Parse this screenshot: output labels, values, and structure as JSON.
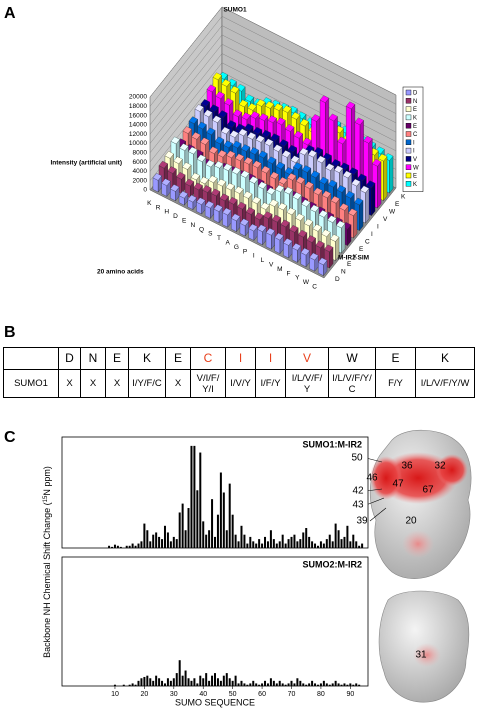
{
  "panels": [
    {
      "label": "A"
    },
    {
      "label": "B"
    },
    {
      "label": "C"
    }
  ],
  "chart_data": [
    {
      "type": "bar3d",
      "title": "SUMO1",
      "y_label": "Intensity (artificial unit)",
      "x_label": "20 amino acids",
      "z_label": "M-IR2 SIM",
      "categories": [
        "K",
        "R",
        "H",
        "D",
        "E",
        "N",
        "Q",
        "S",
        "T",
        "A",
        "G",
        "P",
        "I",
        "L",
        "V",
        "M",
        "F",
        "Y",
        "W",
        "C"
      ],
      "ylim": [
        0,
        20000
      ],
      "yticks": [
        0,
        2000,
        4000,
        6000,
        8000,
        10000,
        12000,
        14000,
        16000,
        18000,
        20000
      ],
      "grid": true,
      "series": [
        {
          "name": "D",
          "color": "#9999ff",
          "values": [
            2500,
            2300,
            2000,
            1500,
            1600,
            2000,
            2200,
            2400,
            2600,
            2300,
            2200,
            2000,
            2800,
            3000,
            2900,
            2700,
            2600,
            2500,
            2400,
            2300
          ]
        },
        {
          "name": "N",
          "color": "#993366",
          "values": [
            3500,
            3300,
            3000,
            2500,
            2600,
            3000,
            3200,
            3100,
            3300,
            3200,
            3000,
            2800,
            4000,
            4200,
            4100,
            3900,
            3800,
            3600,
            3400,
            3500
          ]
        },
        {
          "name": "E",
          "color": "#ffffcc",
          "values": [
            4000,
            3800,
            3500,
            2200,
            2300,
            3500,
            3700,
            3800,
            4000,
            3900,
            3700,
            3400,
            5000,
            5200,
            5100,
            4800,
            4600,
            4400,
            4200,
            4100
          ]
        },
        {
          "name": "K",
          "color": "#ccffff",
          "values": [
            5500,
            5000,
            5200,
            4500,
            4300,
            5000,
            5400,
            5600,
            5800,
            5500,
            5300,
            5000,
            6500,
            7000,
            6800,
            6200,
            6000,
            5800,
            5600,
            5400
          ]
        },
        {
          "name": "E",
          "color": "#660066",
          "values": [
            3500,
            3200,
            3000,
            2000,
            2100,
            3000,
            3200,
            3300,
            3500,
            3400,
            3100,
            2900,
            4200,
            4500,
            4300,
            4100,
            4000,
            3800,
            3600,
            3500
          ]
        },
        {
          "name": "C",
          "color": "#ff8080",
          "values": [
            4500,
            4200,
            4000,
            3000,
            3200,
            4000,
            4300,
            4500,
            4700,
            4500,
            4200,
            4000,
            5800,
            6000,
            5900,
            5500,
            5800,
            5600,
            5000,
            4800
          ]
        },
        {
          "name": "I",
          "color": "#0066cc",
          "values": [
            5000,
            4800,
            4500,
            3500,
            3600,
            4500,
            4700,
            5000,
            5200,
            4900,
            4700,
            4500,
            6500,
            6800,
            6600,
            6200,
            6500,
            6300,
            6000,
            5500
          ]
        },
        {
          "name": "I",
          "color": "#ccccff",
          "values": [
            6000,
            5800,
            5500,
            4000,
            4200,
            5500,
            5700,
            6000,
            6200,
            5900,
            5600,
            5400,
            8000,
            8500,
            8200,
            7500,
            8000,
            7800,
            7000,
            6500
          ]
        },
        {
          "name": "V",
          "color": "#000080",
          "values": [
            5500,
            5300,
            5000,
            3800,
            4000,
            5000,
            5200,
            5500,
            5700,
            5400,
            5100,
            4900,
            7000,
            7500,
            7200,
            6800,
            7000,
            6900,
            6500,
            6000
          ]
        },
        {
          "name": "W",
          "color": "#ff00ff",
          "values": [
            7000,
            6500,
            6000,
            4500,
            4800,
            6000,
            6500,
            7000,
            7500,
            7000,
            6500,
            6000,
            12000,
            17000,
            14000,
            10000,
            18500,
            16000,
            13000,
            9000
          ]
        },
        {
          "name": "E",
          "color": "#ffff00",
          "values": [
            8000,
            7500,
            7000,
            5000,
            5200,
            7000,
            7500,
            8000,
            8500,
            8000,
            7500,
            7000,
            9500,
            10000,
            9800,
            9000,
            9500,
            9200,
            8800,
            8500
          ]
        },
        {
          "name": "K",
          "color": "#00ffff",
          "values": [
            6500,
            6000,
            5800,
            4500,
            4600,
            5800,
            6200,
            6500,
            6800,
            6500,
            6200,
            6000,
            8000,
            8500,
            8200,
            7800,
            8000,
            7800,
            7500,
            7000
          ]
        }
      ]
    },
    {
      "type": "bar",
      "title": "SUMO1:M-IR2",
      "color": "#000000",
      "y_label": {
        "before": "Backbone NH Chemical Shift Change (",
        "sup": "15",
        "after": "N ppm)"
      },
      "xlim": [
        -8,
        96
      ],
      "ylim": [
        0,
        5
      ],
      "x": [
        8,
        9,
        10,
        11,
        12,
        13,
        14,
        15,
        16,
        17,
        18,
        19,
        20,
        21,
        22,
        23,
        24,
        25,
        26,
        27,
        28,
        29,
        30,
        31,
        32,
        33,
        34,
        35,
        36,
        37,
        38,
        39,
        40,
        41,
        42,
        43,
        44,
        45,
        46,
        47,
        48,
        49,
        50,
        51,
        52,
        53,
        54,
        55,
        56,
        57,
        58,
        59,
        60,
        61,
        62,
        63,
        64,
        65,
        66,
        67,
        68,
        69,
        70,
        71,
        72,
        73,
        74,
        75,
        76,
        77,
        78,
        79,
        80,
        81,
        82,
        83,
        84,
        85,
        86,
        87,
        88,
        89,
        90,
        91,
        92,
        93,
        94
      ],
      "values": [
        0.1,
        0.05,
        0.15,
        0.1,
        0.05,
        0,
        0.1,
        0.1,
        0.2,
        0.1,
        0.2,
        0.3,
        1.1,
        0.8,
        0.3,
        0.6,
        0.7,
        0.5,
        0.4,
        1.0,
        0.7,
        0.3,
        0.5,
        0.4,
        1.6,
        2.0,
        0.8,
        1.8,
        4.6,
        4.6,
        2.6,
        4.3,
        1.2,
        0.6,
        0.8,
        2.2,
        0.5,
        1.5,
        3.4,
        2.5,
        0.8,
        2.9,
        1.5,
        0.6,
        0.3,
        1.0,
        0.6,
        0.2,
        0.5,
        0.3,
        0.2,
        0.4,
        0.2,
        0.5,
        0.3,
        0.8,
        0.4,
        0.2,
        0.3,
        0.6,
        0.2,
        0.4,
        0.5,
        0.6,
        0.3,
        0.4,
        0.7,
        0.9,
        0.5,
        0.3,
        0.2,
        0.1,
        0.3,
        0.2,
        0.4,
        0.6,
        0.3,
        1.1,
        0.8,
        0.4,
        0.5,
        1.0,
        0.3,
        0.6,
        0.3,
        0.1,
        0.2
      ]
    },
    {
      "type": "bar",
      "title": "SUMO2:M-IR2",
      "color": "#000000",
      "x_label": "SUMO SEQUENCE",
      "xlim": [
        -8,
        96
      ],
      "ylim": [
        0,
        5
      ],
      "xticks": [
        10,
        20,
        30,
        40,
        50,
        60,
        70,
        80,
        90
      ],
      "x": [
        8,
        9,
        10,
        11,
        12,
        13,
        14,
        15,
        16,
        17,
        18,
        19,
        20,
        21,
        22,
        23,
        24,
        25,
        26,
        27,
        28,
        29,
        30,
        31,
        32,
        33,
        34,
        35,
        36,
        37,
        38,
        39,
        40,
        41,
        42,
        43,
        44,
        45,
        46,
        47,
        48,
        49,
        50,
        51,
        52,
        53,
        54,
        55,
        56,
        57,
        58,
        59,
        60,
        61,
        62,
        63,
        64,
        65,
        66,
        67,
        68,
        69,
        70,
        71,
        72,
        73,
        74,
        75,
        76,
        77,
        78,
        79,
        80,
        81,
        82,
        83,
        84,
        85,
        86,
        87,
        88,
        89,
        90,
        91,
        92,
        93,
        94
      ],
      "values": [
        0,
        0,
        0.05,
        0,
        0,
        0.05,
        0,
        0.05,
        0.1,
        0.05,
        0.2,
        0.3,
        0.35,
        0.4,
        0.3,
        0.2,
        0.4,
        0.3,
        0.2,
        0.1,
        0.3,
        0.2,
        0.3,
        0.5,
        1.0,
        0.4,
        0.6,
        0.3,
        0.2,
        0.3,
        0.1,
        0.4,
        0.3,
        0.5,
        0.2,
        0.4,
        0.5,
        0.3,
        0.2,
        0.4,
        0.5,
        0.3,
        0.2,
        0.4,
        0.1,
        0.2,
        0.1,
        0.05,
        0.1,
        0.2,
        0.1,
        0.05,
        0.1,
        0.2,
        0.1,
        0.3,
        0.2,
        0.1,
        0.2,
        0.1,
        0.05,
        0.1,
        0.2,
        0.1,
        0.3,
        0.2,
        0.1,
        0.05,
        0.1,
        0.2,
        0.1,
        0.05,
        0.1,
        0.2,
        0.1,
        0.05,
        0.1,
        0.2,
        0.1,
        0.05,
        0.1,
        0.05,
        0.1,
        0.05,
        0.1,
        0.05,
        0
      ]
    }
  ],
  "table": {
    "columns": [
      "D",
      "N",
      "E",
      "K",
      "E",
      "C",
      "I",
      "I",
      "V",
      "W",
      "E",
      "K"
    ],
    "highlight_color": "#e8401c",
    "highlighted": [
      false,
      false,
      false,
      false,
      false,
      true,
      true,
      true,
      true,
      false,
      false,
      false
    ],
    "rows": [
      {
        "name": "SUMO1",
        "cells": [
          "X",
          "X",
          "X",
          "I/Y/F/C",
          "X",
          "V/I/F/Y/I",
          "I/V/Y",
          "I/F/Y",
          "I/L/V/F/Y",
          "I/L/V/F/Y/C",
          "F/Y",
          "I/L/V/F/Y/W"
        ]
      }
    ]
  },
  "structures": {
    "sumo1_labels": [
      50,
      36,
      32,
      46,
      47,
      67,
      42,
      43,
      39,
      20
    ],
    "sumo2_labels": [
      31
    ]
  }
}
